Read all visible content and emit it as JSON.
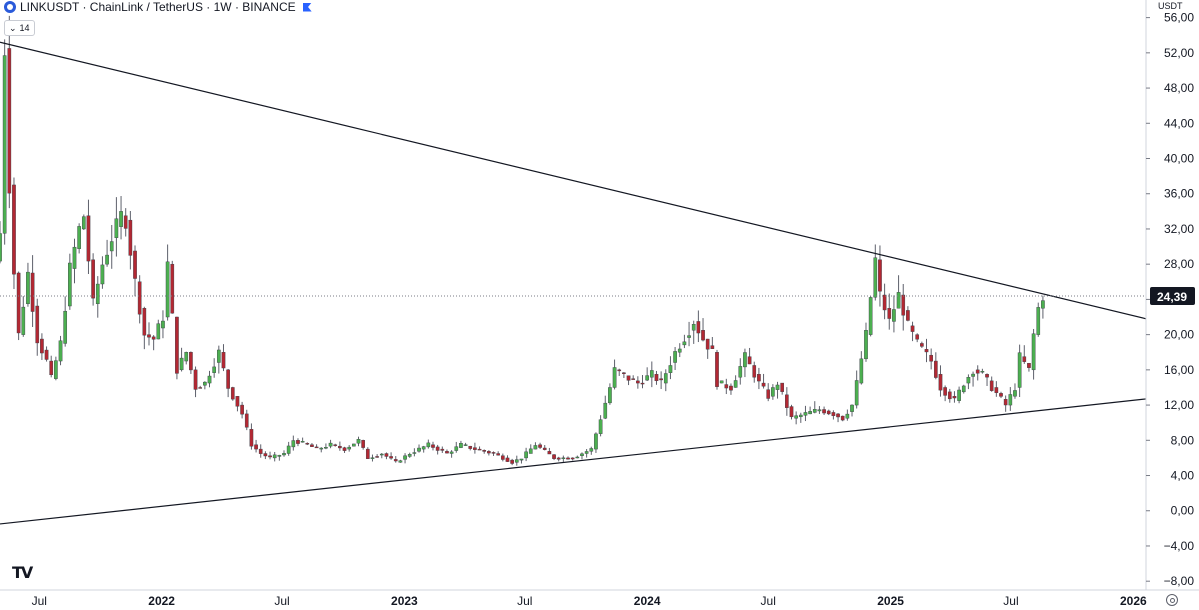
{
  "header": {
    "symbol_title": "LINKUSDT · ChainLink / TetherUS · 1W · BINANCE",
    "indicator_label": "14"
  },
  "logo_text": "TV",
  "price_unit": "USDT",
  "current_price_label": "24,39",
  "icons": [
    "chainlink-icon",
    "flag-icon",
    "chevron-down-icon",
    "tradingview-logo",
    "settings-icon"
  ],
  "chart_data": {
    "type": "candlestick",
    "title": "",
    "xlabel": "",
    "ylabel": "USDT",
    "ylim": [
      -9,
      58
    ],
    "y_ticks": [
      -8,
      -4,
      0,
      4,
      8,
      12,
      16,
      20,
      24,
      28,
      32,
      36,
      40,
      44,
      48,
      52,
      56
    ],
    "y_tick_labels": [
      "−8,00",
      "−4,00",
      "0,00",
      "4,00",
      "8,00",
      "12,00",
      "16,00",
      "20,00",
      "24,00",
      "28,00",
      "32,00",
      "36,00",
      "40,00",
      "44,00",
      "48,00",
      "52,00",
      "56,00"
    ],
    "x_tick_labels": [
      "Jul",
      "2022",
      "Jul",
      "2023",
      "Jul",
      "2024",
      "Jul",
      "2025",
      "Jul",
      "2026"
    ],
    "x_tick_dates": [
      "2021-07-01",
      "2022-01-01",
      "2022-07-01",
      "2023-01-01",
      "2023-07-01",
      "2024-01-01",
      "2024-07-01",
      "2025-01-01",
      "2025-07-01",
      "2026-01-01"
    ],
    "x_range": [
      "2021-05-03",
      "2026-01-20"
    ],
    "current_price": 24.39,
    "colors": {
      "up": "#4caf50",
      "down": "#b22833",
      "line": "#131722",
      "price_line": "#787b86",
      "label_bg": "#131722"
    },
    "trendlines": [
      {
        "name": "",
        "from": [
          "2021-05-03",
          53.2
        ],
        "to": [
          "2026-01-20",
          21.8
        ]
      },
      {
        "name": "",
        "from": [
          "2021-05-03",
          -1.5
        ],
        "to": [
          "2026-01-20",
          12.7
        ]
      }
    ],
    "weekly_close_anchors": [
      [
        "2021-05-03",
        31.5
      ],
      [
        "2021-05-10",
        52.5
      ],
      [
        "2021-05-17",
        37.0
      ],
      [
        "2021-05-24",
        27.0
      ],
      [
        "2021-05-31",
        20.0
      ],
      [
        "2021-06-14",
        27.0
      ],
      [
        "2021-06-28",
        19.5
      ],
      [
        "2021-07-12",
        17.0
      ],
      [
        "2021-07-19",
        15.0
      ],
      [
        "2021-08-02",
        19.0
      ],
      [
        "2021-08-16",
        27.5
      ],
      [
        "2021-08-30",
        32.0
      ],
      [
        "2021-09-06",
        33.5
      ],
      [
        "2021-09-20",
        23.5
      ],
      [
        "2021-10-04",
        28.0
      ],
      [
        "2021-10-18",
        31.0
      ],
      [
        "2021-11-01",
        33.5
      ],
      [
        "2021-11-08",
        33.0
      ],
      [
        "2021-11-22",
        26.0
      ],
      [
        "2021-12-06",
        20.0
      ],
      [
        "2021-12-20",
        19.5
      ],
      [
        "2022-01-03",
        22.0
      ],
      [
        "2022-01-10",
        28.0
      ],
      [
        "2022-01-24",
        16.0
      ],
      [
        "2022-02-07",
        18.0
      ],
      [
        "2022-02-21",
        14.0
      ],
      [
        "2022-03-07",
        14.5
      ],
      [
        "2022-03-28",
        18.0
      ],
      [
        "2022-04-11",
        14.0
      ],
      [
        "2022-05-02",
        11.0
      ],
      [
        "2022-05-16",
        7.5
      ],
      [
        "2022-05-30",
        6.5
      ],
      [
        "2022-06-13",
        6.0
      ],
      [
        "2022-07-04",
        6.5
      ],
      [
        "2022-07-18",
        8.0
      ],
      [
        "2022-08-08",
        7.5
      ],
      [
        "2022-08-22",
        7.0
      ],
      [
        "2022-09-12",
        7.5
      ],
      [
        "2022-10-03",
        7.0
      ],
      [
        "2022-10-24",
        8.0
      ],
      [
        "2022-11-07",
        6.0
      ],
      [
        "2022-11-28",
        6.5
      ],
      [
        "2022-12-19",
        5.5
      ],
      [
        "2023-01-09",
        6.5
      ],
      [
        "2023-02-06",
        7.5
      ],
      [
        "2023-03-06",
        6.5
      ],
      [
        "2023-03-27",
        7.5
      ],
      [
        "2023-04-17",
        7.0
      ],
      [
        "2023-05-15",
        6.5
      ],
      [
        "2023-06-12",
        5.5
      ],
      [
        "2023-06-26",
        6.0
      ],
      [
        "2023-07-17",
        7.5
      ],
      [
        "2023-08-14",
        6.0
      ],
      [
        "2023-09-11",
        6.0
      ],
      [
        "2023-10-09",
        7.0
      ],
      [
        "2023-10-23",
        10.5
      ],
      [
        "2023-11-06",
        14.0
      ],
      [
        "2023-11-13",
        16.0
      ],
      [
        "2023-12-04",
        15.0
      ],
      [
        "2023-12-18",
        14.5
      ],
      [
        "2024-01-08",
        15.5
      ],
      [
        "2024-01-22",
        14.5
      ],
      [
        "2024-02-12",
        18.0
      ],
      [
        "2024-03-04",
        20.5
      ],
      [
        "2024-03-11",
        21.5
      ],
      [
        "2024-03-25",
        19.5
      ],
      [
        "2024-04-08",
        18.0
      ],
      [
        "2024-04-15",
        14.5
      ],
      [
        "2024-05-06",
        14.0
      ],
      [
        "2024-05-27",
        17.5
      ],
      [
        "2024-06-17",
        14.5
      ],
      [
        "2024-07-01",
        13.0
      ],
      [
        "2024-07-15",
        14.5
      ],
      [
        "2024-08-05",
        10.5
      ],
      [
        "2024-08-26",
        11.0
      ],
      [
        "2024-09-16",
        11.5
      ],
      [
        "2024-10-07",
        11.0
      ],
      [
        "2024-10-21",
        10.5
      ],
      [
        "2024-11-04",
        12.0
      ],
      [
        "2024-11-11",
        14.5
      ],
      [
        "2024-11-25",
        20.0
      ],
      [
        "2024-12-09",
        28.5
      ],
      [
        "2024-12-16",
        24.5
      ],
      [
        "2024-12-30",
        21.5
      ],
      [
        "2025-01-13",
        24.5
      ],
      [
        "2025-01-27",
        21.0
      ],
      [
        "2025-02-10",
        19.0
      ],
      [
        "2025-03-03",
        17.0
      ],
      [
        "2025-03-17",
        14.0
      ],
      [
        "2025-04-07",
        12.5
      ],
      [
        "2025-04-21",
        14.5
      ],
      [
        "2025-05-05",
        16.0
      ],
      [
        "2025-05-19",
        15.5
      ],
      [
        "2025-06-02",
        14.0
      ],
      [
        "2025-06-23",
        12.0
      ],
      [
        "2025-07-07",
        14.0
      ],
      [
        "2025-07-14",
        17.5
      ],
      [
        "2025-07-28",
        16.0
      ],
      [
        "2025-08-04",
        20.0
      ],
      [
        "2025-08-11",
        23.0
      ],
      [
        "2025-08-18",
        24.39
      ]
    ]
  }
}
